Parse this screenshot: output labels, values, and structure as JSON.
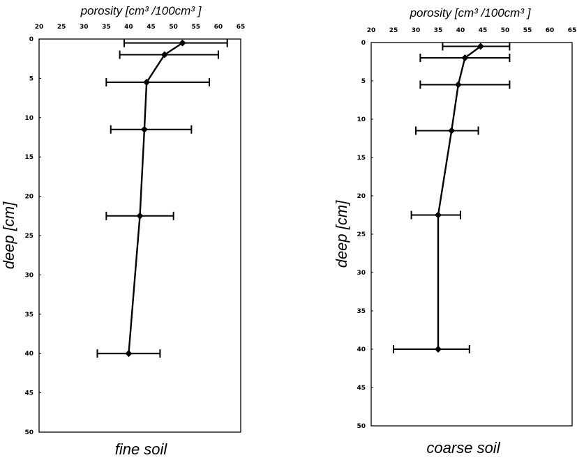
{
  "chart_data": [
    {
      "type": "line",
      "title": "",
      "caption": "fine soil",
      "xlabel": "porosity [cm³ /100cm³ ]",
      "ylabel": "deep [cm]",
      "xlim": [
        20,
        65
      ],
      "ylim": [
        0,
        50
      ],
      "y_inverted": true,
      "x_axis_position": "top",
      "x_ticks": [
        "20",
        "25",
        "30",
        "35",
        "40",
        "45",
        "50",
        "55",
        "60",
        "65"
      ],
      "y_ticks": [
        "0",
        "5",
        "10",
        "15",
        "20",
        "25",
        "30",
        "35",
        "40",
        "45",
        "50"
      ],
      "series": [
        {
          "depth": [
            0.5,
            2,
            5.5,
            11.5,
            22.5,
            40
          ],
          "porosity": [
            52,
            48,
            44,
            43.5,
            42.5,
            40
          ],
          "error_low": [
            39,
            38,
            35,
            36,
            35,
            33
          ],
          "error_high": [
            62,
            60,
            58,
            54,
            50,
            47
          ]
        }
      ]
    },
    {
      "type": "line",
      "title": "",
      "caption": "coarse soil",
      "xlabel": "porosity [cm³ /100cm³ ]",
      "ylabel": "deep [cm]",
      "xlim": [
        20,
        65
      ],
      "ylim": [
        0,
        50
      ],
      "y_inverted": true,
      "x_axis_position": "top",
      "x_ticks": [
        "20",
        "25",
        "30",
        "35",
        "40",
        "45",
        "50",
        "55",
        "60",
        "65"
      ],
      "y_ticks": [
        "0",
        "5",
        "10",
        "15",
        "20",
        "25",
        "30",
        "35",
        "40",
        "45",
        "50"
      ],
      "series": [
        {
          "depth": [
            0.5,
            2,
            5.5,
            11.5,
            22.5,
            40
          ],
          "porosity": [
            44.5,
            41,
            39.5,
            38,
            35,
            35
          ],
          "error_low": [
            36,
            31,
            31,
            30,
            29,
            25
          ],
          "error_high": [
            51,
            51,
            51,
            44,
            40,
            42
          ]
        }
      ]
    }
  ]
}
